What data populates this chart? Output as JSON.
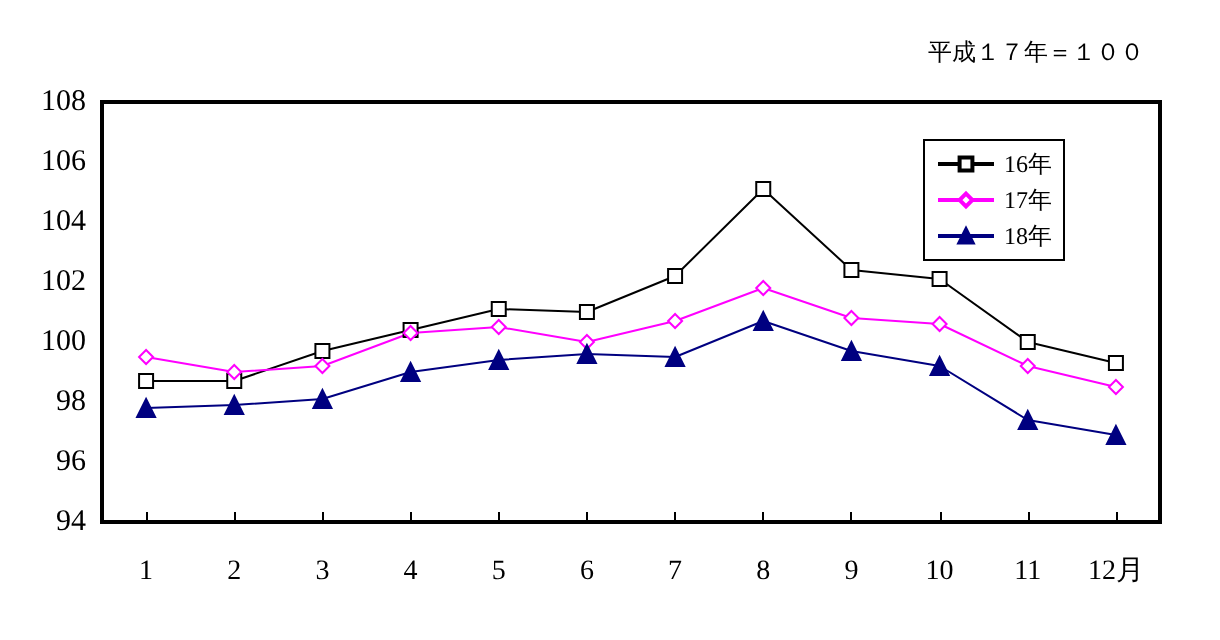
{
  "chart_data": {
    "type": "line",
    "annotations": [
      "平成１７年＝１００"
    ],
    "categories": [
      "1",
      "2",
      "3",
      "4",
      "5",
      "6",
      "7",
      "8",
      "9",
      "10",
      "11",
      "12月"
    ],
    "series": [
      {
        "name": "16年",
        "color": "#000000",
        "marker": "square",
        "values": [
          98.7,
          98.7,
          99.7,
          100.4,
          101.1,
          101.0,
          102.2,
          105.1,
          102.4,
          102.1,
          100.0,
          99.3
        ]
      },
      {
        "name": "17年",
        "color": "#ff00ff",
        "marker": "diamond",
        "values": [
          99.5,
          99.0,
          99.2,
          100.3,
          100.5,
          100.0,
          100.7,
          101.8,
          100.8,
          100.6,
          99.2,
          98.5
        ]
      },
      {
        "name": "18年",
        "color": "#000080",
        "marker": "triangle",
        "values": [
          97.8,
          97.9,
          98.1,
          99.0,
          99.4,
          99.6,
          99.5,
          100.7,
          99.7,
          99.2,
          97.4,
          96.9
        ]
      }
    ],
    "ylim": [
      94,
      108
    ],
    "yticks": [
      94,
      96,
      98,
      100,
      102,
      104,
      106,
      108
    ],
    "grid": false,
    "legend": "top right"
  }
}
